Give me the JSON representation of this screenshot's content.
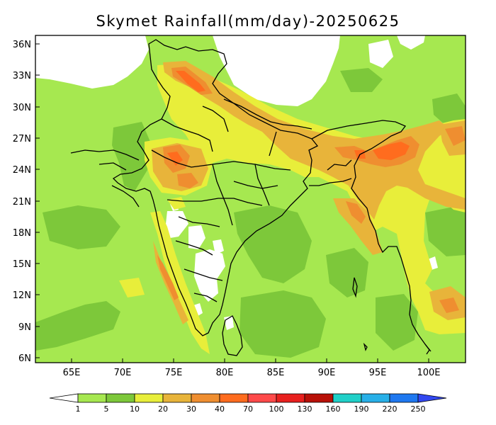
{
  "map": {
    "title": "Skymet Rainfall(mm/day)-20250625",
    "lon_labels": [
      "65E",
      "70E",
      "75E",
      "80E",
      "85E",
      "90E",
      "95E",
      "100E"
    ],
    "lat_labels": [
      "36N",
      "33N",
      "30N",
      "27N",
      "24N",
      "21N",
      "18N",
      "15N",
      "12N",
      "9N",
      "6N"
    ],
    "legend": {
      "labels": [
        "1",
        "5",
        "10",
        "20",
        "30",
        "40",
        "70",
        "100",
        "130",
        "160",
        "190",
        "220",
        "250"
      ],
      "colors": [
        "#ffffff",
        "#a6e850",
        "#7dc83a",
        "#e8ee3a",
        "#e8b43a",
        "#ef8e30",
        "#ff6c1e",
        "#ff4a4a",
        "#e8201e",
        "#b81008",
        "#20d0c8",
        "#28b0e8",
        "#1e78f0",
        "#3248f0"
      ]
    }
  }
}
